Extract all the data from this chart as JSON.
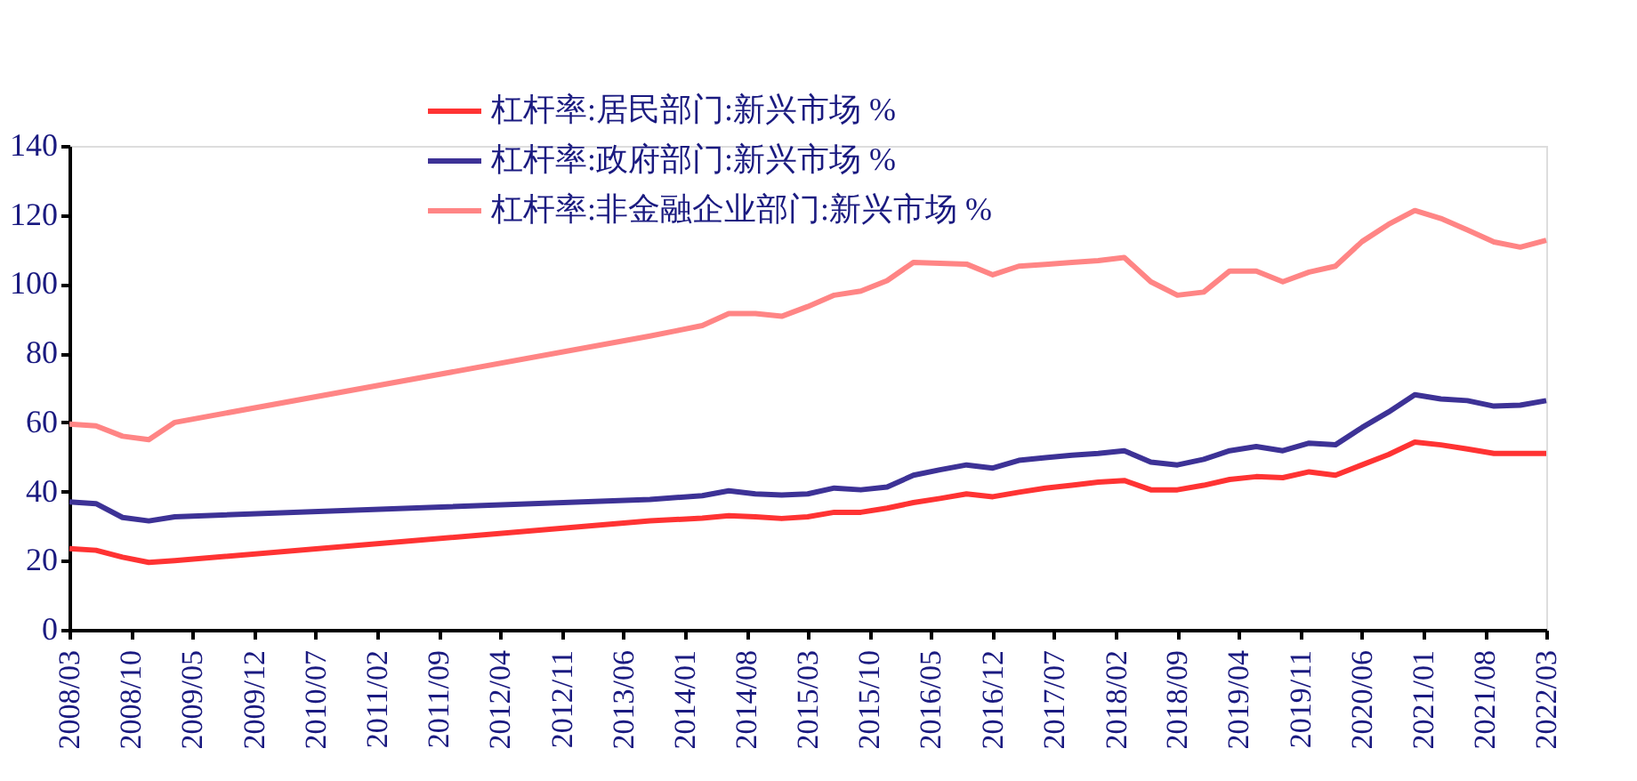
{
  "chart_data": {
    "type": "line",
    "legend": "top",
    "line_style": "solid",
    "marker": "none",
    "grid": false,
    "xlim": [
      "2008-03",
      "2022-03"
    ],
    "xticks": [
      {
        "value": "2008-03",
        "label": "2008/03"
      },
      {
        "value": "2008-10",
        "label": "2008/10"
      },
      {
        "value": "2009-05",
        "label": "2009/05"
      },
      {
        "value": "2009-12",
        "label": "2009/12"
      },
      {
        "value": "2010-07",
        "label": "2010/07"
      },
      {
        "value": "2011-02",
        "label": "2011/02"
      },
      {
        "value": "2011-09",
        "label": "2011/09"
      },
      {
        "value": "2012-04",
        "label": "2012/04"
      },
      {
        "value": "2012-11",
        "label": "2012/11"
      },
      {
        "value": "2013-06",
        "label": "2013/06"
      },
      {
        "value": "2014-01",
        "label": "2014/01"
      },
      {
        "value": "2014-08",
        "label": "2014/08"
      },
      {
        "value": "2015-03",
        "label": "2015/03"
      },
      {
        "value": "2015-10",
        "label": "2015/10"
      },
      {
        "value": "2016-05",
        "label": "2016/05"
      },
      {
        "value": "2016-12",
        "label": "2016/12"
      },
      {
        "value": "2017-07",
        "label": "2017/07"
      },
      {
        "value": "2018-02",
        "label": "2018/02"
      },
      {
        "value": "2018-09",
        "label": "2018/09"
      },
      {
        "value": "2019-04",
        "label": "2019/04"
      },
      {
        "value": "2019-11",
        "label": "2019/11"
      },
      {
        "value": "2020-06",
        "label": "2020/06"
      },
      {
        "value": "2021-01",
        "label": "2021/01"
      },
      {
        "value": "2021-08",
        "label": "2021/08"
      },
      {
        "value": "2022-03",
        "label": "2022/03"
      }
    ],
    "ylim": [
      0,
      140
    ],
    "yticks": [
      0,
      20,
      40,
      60,
      80,
      100,
      120,
      140
    ],
    "series": [
      {
        "name": "杠杆率:居民部门:新兴市场 %",
        "color": "#ff3333",
        "x": [
          "2008-03",
          "2008-06",
          "2008-09",
          "2008-12",
          "2009-03",
          "2013-09",
          "2014-03",
          "2014-06",
          "2014-09",
          "2014-12",
          "2015-03",
          "2015-06",
          "2015-09",
          "2015-12",
          "2016-03",
          "2016-06",
          "2016-09",
          "2016-12",
          "2017-03",
          "2017-06",
          "2017-09",
          "2017-12",
          "2018-03",
          "2018-06",
          "2018-09",
          "2018-12",
          "2019-03",
          "2019-06",
          "2019-09",
          "2019-12",
          "2020-03",
          "2020-06",
          "2020-09",
          "2020-12",
          "2021-03",
          "2021-06",
          "2021-09",
          "2021-12",
          "2022-03"
        ],
        "values": [
          23.5,
          23,
          21,
          19.5,
          20,
          31.5,
          32.3,
          33,
          32.7,
          32.2,
          32.7,
          34,
          34,
          35.2,
          36.8,
          38,
          39.3,
          38.5,
          39.8,
          41,
          41.8,
          42.7,
          43.2,
          40.5,
          40.5,
          41.8,
          43.5,
          44.3,
          44,
          45.7,
          44.7,
          47.7,
          50.7,
          54.3,
          53.5,
          52.3,
          51,
          51,
          51
        ]
      },
      {
        "name": "杠杆率:政府部门:新兴市场 %",
        "color": "#3d3296",
        "x": [
          "2008-03",
          "2008-06",
          "2008-09",
          "2008-12",
          "2009-03",
          "2013-09",
          "2014-03",
          "2014-06",
          "2014-09",
          "2014-12",
          "2015-03",
          "2015-06",
          "2015-09",
          "2015-12",
          "2016-03",
          "2016-06",
          "2016-09",
          "2016-12",
          "2017-03",
          "2017-06",
          "2017-09",
          "2017-12",
          "2018-03",
          "2018-06",
          "2018-09",
          "2018-12",
          "2019-03",
          "2019-06",
          "2019-09",
          "2019-12",
          "2020-03",
          "2020-06",
          "2020-09",
          "2020-12",
          "2021-03",
          "2021-06",
          "2021-09",
          "2021-12",
          "2022-03"
        ],
        "values": [
          37,
          36.5,
          32.5,
          31.5,
          32.7,
          37.7,
          38.8,
          40.2,
          39.3,
          39,
          39.3,
          41,
          40.5,
          41.3,
          44.7,
          46.3,
          47.7,
          46.8,
          49,
          49.8,
          50.5,
          51,
          51.8,
          48.5,
          47.7,
          49.3,
          51.8,
          53,
          51.8,
          54,
          53.5,
          58.5,
          63,
          68,
          66.8,
          66.3,
          64.7,
          65,
          66.3
        ]
      },
      {
        "name": "杠杆率:非金融企业部门:新兴市场 %",
        "color": "#ff8585",
        "x": [
          "2008-03",
          "2008-06",
          "2008-09",
          "2008-12",
          "2009-03",
          "2013-09",
          "2013-12",
          "2014-03",
          "2014-06",
          "2014-09",
          "2014-12",
          "2015-03",
          "2015-06",
          "2015-09",
          "2015-12",
          "2016-03",
          "2016-06",
          "2016-09",
          "2016-12",
          "2017-03",
          "2017-06",
          "2017-09",
          "2017-12",
          "2018-03",
          "2018-06",
          "2018-09",
          "2018-12",
          "2019-03",
          "2019-06",
          "2019-09",
          "2019-12",
          "2020-03",
          "2020-06",
          "2020-09",
          "2020-12",
          "2021-03",
          "2021-06",
          "2021-09",
          "2021-12",
          "2022-03"
        ],
        "values": [
          59.5,
          59,
          56,
          55,
          60,
          85,
          86.5,
          88,
          91.5,
          91.5,
          90.7,
          93.5,
          96.8,
          98,
          101,
          106.3,
          106,
          105.8,
          102.7,
          105.2,
          105.7,
          106.3,
          106.8,
          107.7,
          100.7,
          96.8,
          97.7,
          103.8,
          103.8,
          100.7,
          103.5,
          105.2,
          112.3,
          117.3,
          121.3,
          119,
          115.7,
          112.2,
          110.7,
          112.7
        ]
      }
    ]
  }
}
